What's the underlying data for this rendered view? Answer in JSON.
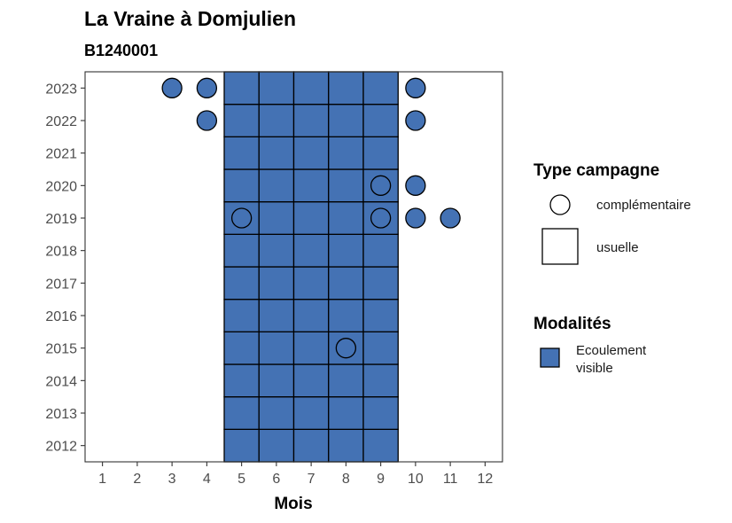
{
  "chart_data": {
    "type": "heatmap",
    "title": "La Vraine à Domjulien",
    "subtitle": "B1240001",
    "xlabel": "Mois",
    "ylabel": "",
    "x_ticks": [
      1,
      2,
      3,
      4,
      5,
      6,
      7,
      8,
      9,
      10,
      11,
      12
    ],
    "y_ticks": [
      2012,
      2013,
      2014,
      2015,
      2016,
      2017,
      2018,
      2019,
      2020,
      2021,
      2022,
      2023
    ],
    "xlim": [
      0.5,
      12.5
    ],
    "ylim": [
      2011.5,
      2023.5
    ],
    "fill_color": "#4472b4",
    "usuelle_months": [
      5,
      6,
      7,
      8,
      9
    ],
    "usuelle_years": [
      2012,
      2013,
      2014,
      2015,
      2016,
      2017,
      2018,
      2019,
      2020,
      2021,
      2022,
      2023
    ],
    "complementaire_points": [
      {
        "month": 3,
        "year": 2023,
        "filled": true
      },
      {
        "month": 4,
        "year": 2023,
        "filled": true
      },
      {
        "month": 10,
        "year": 2023,
        "filled": true
      },
      {
        "month": 4,
        "year": 2022,
        "filled": true
      },
      {
        "month": 10,
        "year": 2022,
        "filled": true
      },
      {
        "month": 9,
        "year": 2020,
        "filled": false
      },
      {
        "month": 10,
        "year": 2020,
        "filled": true
      },
      {
        "month": 5,
        "year": 2019,
        "filled": false
      },
      {
        "month": 9,
        "year": 2019,
        "filled": false
      },
      {
        "month": 10,
        "year": 2019,
        "filled": true
      },
      {
        "month": 11,
        "year": 2019,
        "filled": true
      },
      {
        "month": 8,
        "year": 2015,
        "filled": false
      }
    ],
    "legend": {
      "placement": "right",
      "type_title": "Type campagne",
      "type_entries": [
        "complémentaire",
        "usuelle"
      ],
      "modalites_title": "Modalités",
      "modalites_entries": [
        {
          "label_line1": "Ecoulement",
          "label_line2": "visible",
          "color": "#4472b4"
        }
      ]
    }
  }
}
